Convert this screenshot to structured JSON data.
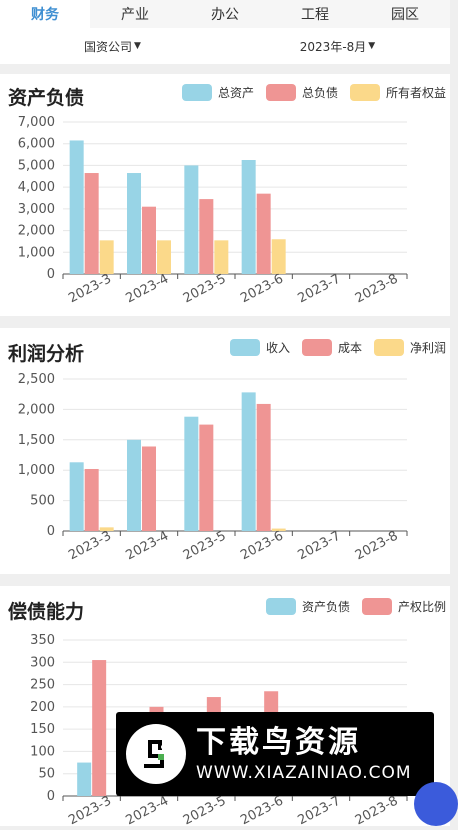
{
  "tabs": [
    {
      "label": "财务",
      "active": true
    },
    {
      "label": "产业",
      "active": false
    },
    {
      "label": "办公",
      "active": false
    },
    {
      "label": "工程",
      "active": false
    },
    {
      "label": "园区",
      "active": false
    }
  ],
  "filters": {
    "company": "国资公司",
    "period": "2023年-8月"
  },
  "colors": {
    "blue": "#98d4e6",
    "red": "#ef9594",
    "yellow": "#fbd98a",
    "tab_active": "#3f8fd2"
  },
  "chart_data": [
    {
      "type": "bar",
      "title": "资产负债",
      "categories": [
        "2023-3",
        "2023-4",
        "2023-5",
        "2023-6",
        "2023-7",
        "2023-8"
      ],
      "series": [
        {
          "name": "总资产",
          "values": [
            6150,
            4650,
            5000,
            5250,
            0,
            0
          ]
        },
        {
          "name": "总负债",
          "values": [
            4650,
            3100,
            3450,
            3700,
            0,
            0
          ]
        },
        {
          "name": "所有者权益",
          "values": [
            1550,
            1550,
            1550,
            1600,
            0,
            0
          ]
        }
      ],
      "yticks": [
        "0",
        "1,000",
        "2,000",
        "3,000",
        "4,000",
        "5,000",
        "6,000",
        "7,000"
      ],
      "ylim": [
        0,
        7000
      ],
      "legend": "top-right"
    },
    {
      "type": "bar",
      "title": "利润分析",
      "categories": [
        "2023-3",
        "2023-4",
        "2023-5",
        "2023-6",
        "2023-7",
        "2023-8"
      ],
      "series": [
        {
          "name": "收入",
          "values": [
            1130,
            1500,
            1880,
            2280,
            0,
            0
          ]
        },
        {
          "name": "成本",
          "values": [
            1020,
            1390,
            1750,
            2090,
            0,
            0
          ]
        },
        {
          "name": "净利润",
          "values": [
            60,
            0,
            0,
            40,
            0,
            0
          ]
        }
      ],
      "yticks": [
        "0",
        "500",
        "1,000",
        "1,500",
        "2,000",
        "2,500"
      ],
      "ylim": [
        0,
        2500
      ],
      "legend": "top-right"
    },
    {
      "type": "bar",
      "title": "偿债能力",
      "categories": [
        "2023-3",
        "2023-4",
        "2023-5",
        "2023-6",
        "2023-7",
        "2023-8"
      ],
      "series": [
        {
          "name": "资产负债",
          "values": [
            75,
            0,
            0,
            0,
            0,
            0
          ]
        },
        {
          "name": "产权比例",
          "values": [
            305,
            200,
            222,
            235,
            0,
            0
          ]
        }
      ],
      "yticks": [
        "0",
        "50",
        "100",
        "150",
        "200",
        "250",
        "300",
        "350"
      ],
      "ylim": [
        0,
        350
      ],
      "legend": "top-right"
    }
  ],
  "watermark": {
    "title": "下载鸟资源",
    "url": "WWW.XIAZAINIAO.COM"
  }
}
